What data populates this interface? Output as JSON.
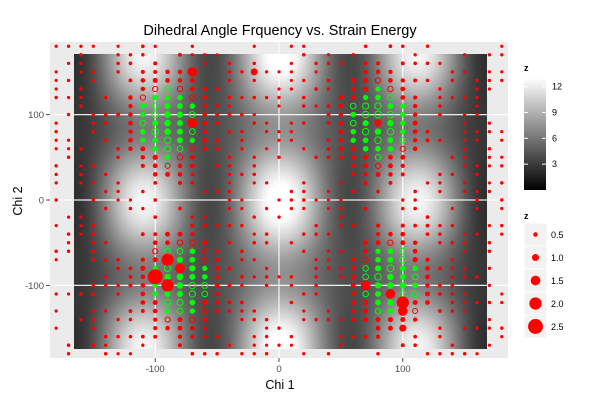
{
  "chart_data": {
    "type": "heatmap",
    "title": "Dihedral Angle Frquency vs. Strain Energy",
    "xlabel": "Chi 1",
    "ylabel": "Chi 2",
    "xlim": [
      -185,
      185
    ],
    "ylim": [
      -185,
      185
    ],
    "x_ticks": [
      -100,
      0,
      100
    ],
    "y_ticks": [
      -100,
      0,
      100
    ],
    "x_tick_labels": [
      "-100",
      "0",
      "100"
    ],
    "y_tick_labels": [
      "-100",
      "0",
      "100"
    ],
    "grid": true,
    "heatmap_legend": {
      "title": "z",
      "range": [
        0,
        13
      ],
      "breaks": [
        3,
        6,
        9,
        12
      ],
      "labels": [
        "3",
        "6",
        "9",
        "12"
      ],
      "colors": [
        "#000000",
        "#ffffff"
      ]
    },
    "size_legend": {
      "title": "z",
      "breaks": [
        0.5,
        1.0,
        1.5,
        2.0,
        2.5
      ],
      "labels": [
        "0.5",
        "1.0",
        "1.5",
        "2.0",
        "2.5"
      ],
      "color": "#ff0000"
    },
    "point_colors": {
      "low": "#ff0000",
      "high": "#00ff00"
    },
    "green_clusters": [
      [
        -90,
        90
      ],
      [
        -80,
        -95
      ],
      [
        80,
        90
      ],
      [
        90,
        -95
      ]
    ],
    "big_points": [
      {
        "x": -100,
        "y": -90,
        "size": 2.5
      },
      {
        "x": -90,
        "y": -70,
        "size": 2.0
      },
      {
        "x": -90,
        "y": -100,
        "size": 2.0
      },
      {
        "x": -80,
        "y": -80,
        "size": 1.5
      },
      {
        "x": 100,
        "y": -120,
        "size": 2.0
      },
      {
        "x": 100,
        "y": -130,
        "size": 1.5
      },
      {
        "x": 100,
        "y": -150,
        "size": 1.0
      },
      {
        "x": 90,
        "y": -110,
        "size": 1.5
      },
      {
        "x": 70,
        "y": -100,
        "size": 1.5
      },
      {
        "x": -70,
        "y": 150,
        "size": 1.5
      },
      {
        "x": -70,
        "y": 90,
        "size": 1.5
      },
      {
        "x": -20,
        "y": 150,
        "size": 1.0
      },
      {
        "x": 80,
        "y": 90,
        "size": 1.0
      }
    ]
  }
}
